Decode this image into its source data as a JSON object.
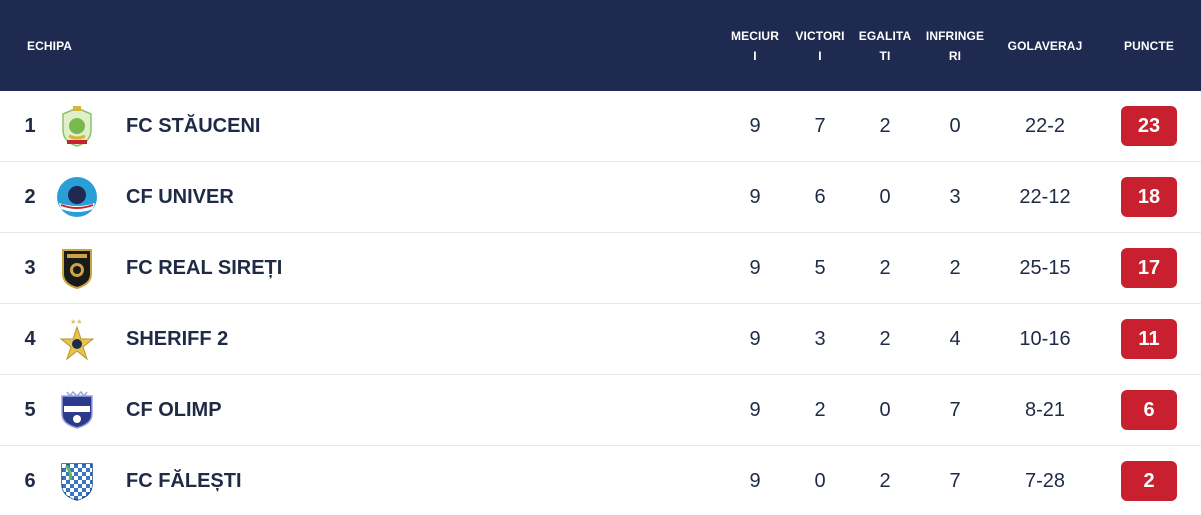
{
  "header": {
    "team": "ECHIPA",
    "played": "MECIUR\nI",
    "won": "VICTORI\nI",
    "drawn": "EGALITA\nTI",
    "lost": "INFRINGE\nRI",
    "goals": "GOLAVERAJ",
    "points": "PUNCTE"
  },
  "teams": [
    {
      "pos": "1",
      "name": "FC STĂUCENI",
      "played": "9",
      "won": "7",
      "drawn": "2",
      "lost": "0",
      "goals": "22-2",
      "points": "23",
      "logo": "fc-staeuceni-crest-icon"
    },
    {
      "pos": "2",
      "name": "CF UNIVER",
      "played": "9",
      "won": "6",
      "drawn": "0",
      "lost": "3",
      "goals": "22-12",
      "points": "18",
      "logo": "cf-univer-crest-icon"
    },
    {
      "pos": "3",
      "name": "FC REAL SIREȚI",
      "played": "9",
      "won": "5",
      "drawn": "2",
      "lost": "2",
      "goals": "25-15",
      "points": "17",
      "logo": "fc-real-sireti-crest-icon"
    },
    {
      "pos": "4",
      "name": "SHERIFF 2",
      "played": "9",
      "won": "3",
      "drawn": "2",
      "lost": "4",
      "goals": "10-16",
      "points": "11",
      "logo": "sheriff-star-crest-icon"
    },
    {
      "pos": "5",
      "name": "CF OLIMP",
      "played": "9",
      "won": "2",
      "drawn": "0",
      "lost": "7",
      "goals": "8-21",
      "points": "6",
      "logo": "cf-olimp-crest-icon"
    },
    {
      "pos": "6",
      "name": "FC FĂLEȘTI",
      "played": "9",
      "won": "0",
      "drawn": "2",
      "lost": "7",
      "goals": "7-28",
      "points": "2",
      "logo": "fc-falesti-crest-icon"
    }
  ],
  "colors": {
    "header_bg": "#1e2a4f",
    "points_badge": "#c8202f",
    "text": "#1f2a44"
  }
}
